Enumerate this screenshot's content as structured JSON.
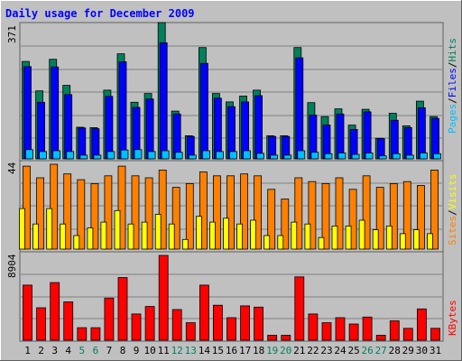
{
  "title": "Daily usage for December 2009",
  "chart_data": [
    {
      "type": "bar",
      "panel": "hits",
      "y_max_label": "371",
      "ylim": [
        0,
        371
      ],
      "legend": [
        "Pages",
        "/",
        "Files",
        "/",
        "Hits"
      ],
      "colors": {
        "hits": "#00805c",
        "files": "#0000ff",
        "pages": "#00c0ff"
      },
      "categories": [
        "1",
        "2",
        "3",
        "4",
        "5",
        "6",
        "7",
        "8",
        "9",
        "10",
        "11",
        "12",
        "13",
        "14",
        "15",
        "16",
        "17",
        "18",
        "19",
        "20",
        "21",
        "22",
        "23",
        "24",
        "25",
        "26",
        "27",
        "28",
        "29",
        "30",
        "31"
      ],
      "series": [
        {
          "name": "Hits",
          "values": [
            265,
            185,
            271,
            200,
            86,
            85,
            187,
            286,
            154,
            178,
            371,
            130,
            63,
            303,
            178,
            155,
            171,
            187,
            63,
            63,
            303,
            153,
            115,
            136,
            92,
            135,
            56,
            124,
            90,
            157,
            115
          ]
        },
        {
          "name": "Files",
          "values": [
            251,
            154,
            250,
            175,
            84,
            82,
            170,
            264,
            140,
            163,
            316,
            122,
            61,
            260,
            165,
            142,
            155,
            172,
            61,
            61,
            275,
            119,
            92,
            122,
            80,
            128,
            55,
            105,
            85,
            139,
            110
          ]
        },
        {
          "name": "Pages",
          "values": [
            25,
            20,
            22,
            20,
            10,
            10,
            20,
            24,
            25,
            20,
            22,
            18,
            10,
            22,
            20,
            20,
            22,
            15,
            10,
            10,
            22,
            18,
            14,
            16,
            12,
            16,
            8,
            14,
            10,
            16,
            14
          ]
        }
      ]
    },
    {
      "type": "bar",
      "panel": "visits",
      "y_max_label": "44",
      "ylim": [
        0,
        44
      ],
      "legend": [
        "Sites",
        "/",
        "Visits"
      ],
      "colors": {
        "visits": "#ff8000",
        "sites": "#ffff00"
      },
      "categories": [
        "1",
        "2",
        "3",
        "4",
        "5",
        "6",
        "7",
        "8",
        "9",
        "10",
        "11",
        "12",
        "13",
        "14",
        "15",
        "16",
        "17",
        "18",
        "19",
        "20",
        "21",
        "22",
        "23",
        "24",
        "25",
        "26",
        "27",
        "28",
        "29",
        "30",
        "31"
      ],
      "series": [
        {
          "name": "Visits",
          "values": [
            43,
            37,
            44,
            39,
            36,
            34,
            38,
            43,
            38,
            37,
            41,
            32,
            34,
            40,
            38,
            38,
            39,
            38,
            31,
            26,
            37,
            35,
            34,
            37,
            31,
            38,
            32,
            34,
            35,
            33,
            41
          ]
        },
        {
          "name": "Sites",
          "values": [
            21,
            13,
            21,
            13,
            7,
            11,
            14,
            20,
            13,
            14,
            18,
            13,
            5,
            17,
            14,
            16,
            13,
            15,
            7,
            7,
            14,
            13,
            6,
            12,
            12,
            15,
            10,
            12,
            8,
            10,
            8
          ]
        }
      ]
    },
    {
      "type": "bar",
      "panel": "kbytes",
      "y_max_label": "8904",
      "ylim": [
        0,
        8904
      ],
      "legend": [
        "KBytes"
      ],
      "colors": {
        "kbytes": "#ff0000"
      },
      "categories": [
        "1",
        "2",
        "3",
        "4",
        "5",
        "6",
        "7",
        "8",
        "9",
        "10",
        "11",
        "12",
        "13",
        "14",
        "15",
        "16",
        "17",
        "18",
        "19",
        "20",
        "21",
        "22",
        "23",
        "24",
        "25",
        "26",
        "27",
        "28",
        "29",
        "30",
        "31"
      ],
      "series": [
        {
          "name": "KBytes",
          "values": [
            5792,
            3414,
            6055,
            4027,
            1313,
            1313,
            4421,
            6580,
            2758,
            3545,
            8904,
            3217,
            1838,
            5792,
            3677,
            2364,
            3611,
            3480,
            525,
            525,
            6646,
            2758,
            1838,
            2364,
            1707,
            2430,
            525,
            2036,
            1247,
            3283,
            1247
          ]
        }
      ]
    }
  ],
  "x_axis": {
    "labels": [
      "1",
      "2",
      "3",
      "4",
      "5",
      "6",
      "7",
      "8",
      "9",
      "10",
      "11",
      "12",
      "13",
      "14",
      "15",
      "16",
      "17",
      "18",
      "19",
      "20",
      "21",
      "22",
      "23",
      "24",
      "25",
      "26",
      "27",
      "28",
      "29",
      "30",
      "31"
    ],
    "weekend_days": [
      "5",
      "6",
      "12",
      "13",
      "19",
      "20",
      "26",
      "27"
    ],
    "weekday_color": "#000000",
    "weekend_color": "#00805c"
  }
}
